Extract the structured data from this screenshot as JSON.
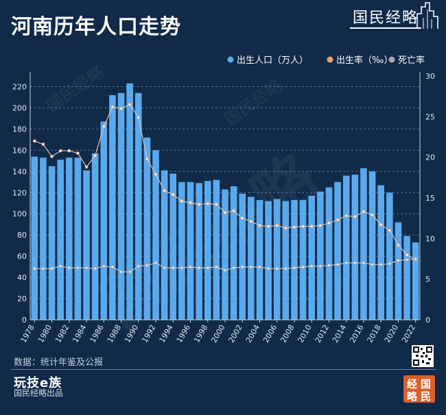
{
  "page": {
    "title": "河南历年人口走势",
    "brand": "国民经略",
    "source": "数据：统计年鉴及公报",
    "logo_text": "玩技e族",
    "credit": "国民经略出品",
    "seal_chars": [
      "经",
      "国",
      "略",
      "民"
    ]
  },
  "chart_data": {
    "type": "bar",
    "title": "河南历年人口走势",
    "categories": [
      "1978",
      "1979",
      "1980",
      "1981",
      "1982",
      "1983",
      "1984",
      "1985",
      "1986",
      "1987",
      "1988",
      "1989",
      "1990",
      "1991",
      "1992",
      "1993",
      "1994",
      "1995",
      "1996",
      "1997",
      "1998",
      "1999",
      "2000",
      "2001",
      "2002",
      "2003",
      "2004",
      "2005",
      "2006",
      "2007",
      "2008",
      "2009",
      "2010",
      "2011",
      "2012",
      "2013",
      "2014",
      "2015",
      "2016",
      "2017",
      "2018",
      "2019",
      "2020",
      "2021",
      "2022"
    ],
    "x_tick_labels": [
      "1978",
      "1980",
      "1982",
      "1984",
      "1986",
      "1988",
      "1990",
      "1992",
      "1994",
      "1996",
      "1998",
      "2000",
      "2002",
      "2004",
      "2006",
      "2008",
      "2010",
      "2012",
      "2014",
      "2016",
      "2018",
      "2020",
      "2022"
    ],
    "y_left": {
      "ylim": [
        0,
        230
      ],
      "ticks": [
        0,
        20,
        40,
        60,
        80,
        100,
        120,
        140,
        160,
        180,
        200,
        220
      ]
    },
    "y_right": {
      "ylim": [
        0,
        30
      ],
      "ticks": [
        0,
        5,
        10,
        15,
        20,
        25,
        30
      ]
    },
    "legend_position": "top-right",
    "series": [
      {
        "name": "出生人口（万人）",
        "type": "bar",
        "axis": "left",
        "color": "#5aa9ec",
        "values": [
          154,
          153,
          145,
          151,
          153,
          153,
          141,
          157,
          187,
          212,
          214,
          223,
          214,
          172,
          160,
          141,
          138,
          130,
          130,
          129,
          131,
          132,
          123,
          126,
          119,
          116,
          113,
          112,
          114,
          112,
          113,
          113,
          117,
          121,
          125,
          130,
          136,
          137,
          143,
          140,
          127,
          120,
          92,
          79,
          73
        ]
      },
      {
        "name": "出生率（‰）",
        "type": "line",
        "axis": "right",
        "color": "#e8a070",
        "values": [
          22.0,
          21.6,
          20.1,
          20.8,
          20.8,
          20.5,
          18.8,
          20.2,
          23.8,
          26.2,
          26.0,
          26.5,
          24.9,
          19.8,
          17.9,
          15.9,
          15.4,
          14.6,
          14.4,
          14.2,
          14.3,
          14.2,
          13.2,
          13.4,
          12.5,
          12.1,
          11.6,
          11.5,
          11.6,
          11.3,
          11.4,
          11.5,
          11.5,
          11.6,
          11.9,
          12.3,
          12.8,
          12.7,
          13.3,
          12.9,
          11.7,
          11.0,
          9.2,
          8.0,
          7.4
        ]
      },
      {
        "name": "死亡率",
        "type": "line",
        "axis": "right",
        "color": "#b0b0b0",
        "values": [
          6.3,
          6.3,
          6.3,
          6.6,
          6.4,
          6.4,
          6.4,
          6.3,
          6.6,
          6.5,
          5.9,
          5.9,
          6.6,
          6.7,
          7.0,
          6.4,
          6.4,
          6.4,
          6.5,
          6.4,
          6.4,
          6.5,
          6.1,
          6.4,
          6.5,
          6.5,
          6.5,
          6.3,
          6.3,
          6.3,
          6.4,
          6.5,
          6.6,
          6.6,
          6.7,
          6.8,
          7.0,
          7.0,
          7.0,
          6.8,
          6.8,
          6.9,
          7.3,
          7.4,
          7.5
        ]
      }
    ]
  }
}
